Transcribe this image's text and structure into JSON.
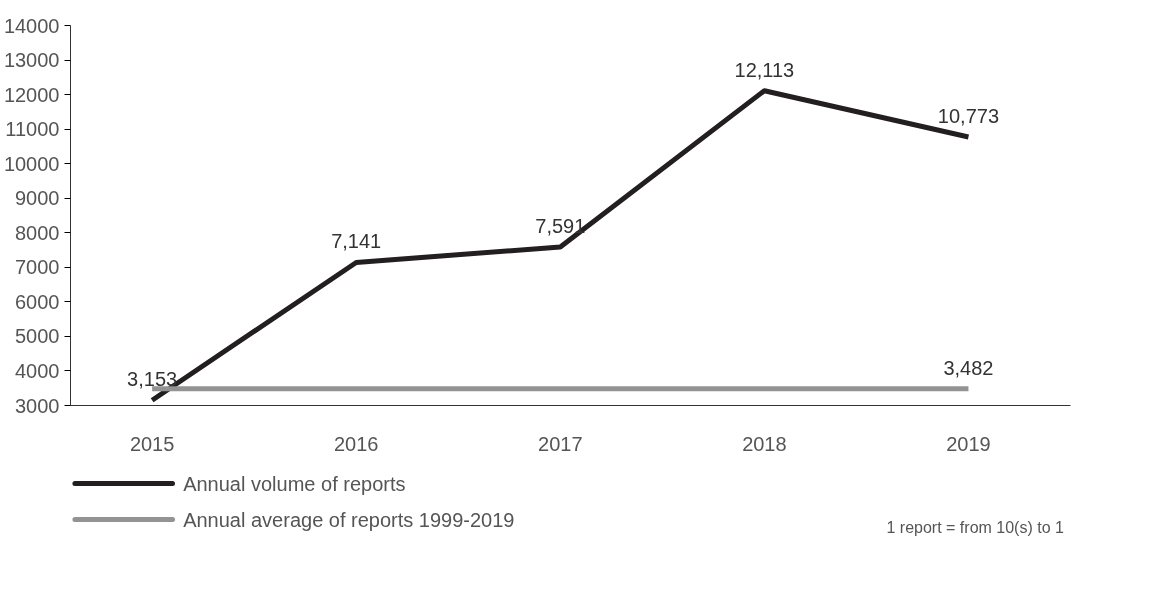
{
  "chart_data": {
    "type": "line",
    "categories": [
      "2015",
      "2016",
      "2017",
      "2018",
      "2019"
    ],
    "series": [
      {
        "name": "Annual volume of reports",
        "color": "#231f20",
        "values": [
          3153,
          7141,
          7591,
          12113,
          10773
        ],
        "value_labels": [
          "3,153",
          "7,141",
          "7,591",
          "12,113",
          "10,773"
        ]
      },
      {
        "name": "Annual average of reports 1999-2019",
        "color": "#939393",
        "values": [
          3482,
          3482,
          3482,
          3482,
          3482
        ],
        "value_labels": [
          null,
          null,
          null,
          null,
          "3,482"
        ]
      }
    ],
    "ylim": [
      3000,
      14000
    ],
    "yticks": [
      3000,
      4000,
      5000,
      6000,
      7000,
      8000,
      9000,
      10000,
      11000,
      12000,
      13000,
      14000
    ],
    "legend": "bottom left",
    "line_style": "solid",
    "annotations": [
      "1 report = from 10(s) to 1"
    ]
  }
}
